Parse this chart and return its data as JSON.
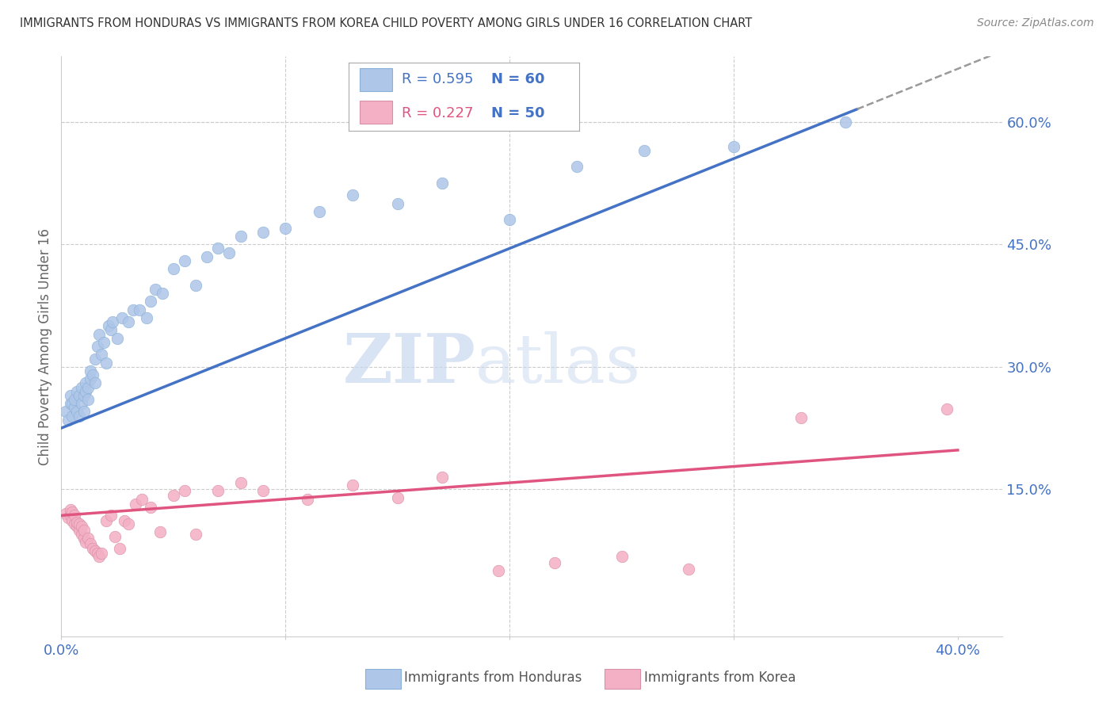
{
  "title": "IMMIGRANTS FROM HONDURAS VS IMMIGRANTS FROM KOREA CHILD POVERTY AMONG GIRLS UNDER 16 CORRELATION CHART",
  "source": "Source: ZipAtlas.com",
  "ylabel": "Child Poverty Among Girls Under 16",
  "xlim": [
    0.0,
    0.42
  ],
  "ylim": [
    -0.03,
    0.68
  ],
  "plot_xlim": [
    0.0,
    0.4
  ],
  "honduras_color": "#aec6e8",
  "korea_color": "#f4b0c4",
  "honduras_line_color": "#4472c4",
  "korea_line_color": "#e05580",
  "honduras_R": 0.595,
  "honduras_N": 60,
  "korea_R": 0.227,
  "korea_N": 50,
  "legend_label_honduras": "Immigrants from Honduras",
  "legend_label_korea": "Immigrants from Korea",
  "watermark_zip": "ZIP",
  "watermark_atlas": "atlas",
  "background_color": "#ffffff",
  "grid_color": "#cccccc",
  "title_color": "#333333",
  "axis_label_color": "#4472c4",
  "ytick_vals": [
    0.0,
    0.15,
    0.3,
    0.45,
    0.6
  ],
  "ytick_labels": [
    "",
    "15.0%",
    "30.0%",
    "45.0%",
    "60.0%"
  ],
  "xtick_vals": [
    0.0,
    0.1,
    0.2,
    0.3,
    0.4
  ],
  "xtick_labels": [
    "0.0%",
    "",
    "",
    "",
    "40.0%"
  ],
  "honduras_x": [
    0.002,
    0.003,
    0.004,
    0.004,
    0.005,
    0.005,
    0.006,
    0.006,
    0.007,
    0.007,
    0.008,
    0.008,
    0.009,
    0.009,
    0.01,
    0.01,
    0.011,
    0.011,
    0.012,
    0.012,
    0.013,
    0.013,
    0.014,
    0.015,
    0.015,
    0.016,
    0.017,
    0.018,
    0.019,
    0.02,
    0.021,
    0.022,
    0.023,
    0.025,
    0.027,
    0.03,
    0.032,
    0.035,
    0.038,
    0.04,
    0.042,
    0.045,
    0.05,
    0.055,
    0.06,
    0.065,
    0.07,
    0.075,
    0.08,
    0.09,
    0.1,
    0.115,
    0.13,
    0.15,
    0.17,
    0.2,
    0.23,
    0.26,
    0.3,
    0.35
  ],
  "honduras_y": [
    0.245,
    0.235,
    0.255,
    0.265,
    0.24,
    0.255,
    0.25,
    0.26,
    0.245,
    0.27,
    0.24,
    0.265,
    0.255,
    0.275,
    0.245,
    0.265,
    0.28,
    0.27,
    0.26,
    0.275,
    0.285,
    0.295,
    0.29,
    0.31,
    0.28,
    0.325,
    0.34,
    0.315,
    0.33,
    0.305,
    0.35,
    0.345,
    0.355,
    0.335,
    0.36,
    0.355,
    0.37,
    0.37,
    0.36,
    0.38,
    0.395,
    0.39,
    0.42,
    0.43,
    0.4,
    0.435,
    0.445,
    0.44,
    0.46,
    0.465,
    0.47,
    0.49,
    0.51,
    0.5,
    0.525,
    0.48,
    0.545,
    0.565,
    0.57,
    0.6
  ],
  "korea_x": [
    0.002,
    0.003,
    0.004,
    0.004,
    0.005,
    0.005,
    0.006,
    0.006,
    0.007,
    0.007,
    0.008,
    0.008,
    0.009,
    0.009,
    0.01,
    0.01,
    0.011,
    0.012,
    0.013,
    0.014,
    0.015,
    0.016,
    0.017,
    0.018,
    0.02,
    0.022,
    0.024,
    0.026,
    0.028,
    0.03,
    0.033,
    0.036,
    0.04,
    0.044,
    0.05,
    0.055,
    0.06,
    0.07,
    0.08,
    0.09,
    0.11,
    0.13,
    0.15,
    0.17,
    0.195,
    0.22,
    0.25,
    0.28,
    0.33,
    0.395
  ],
  "korea_y": [
    0.12,
    0.115,
    0.118,
    0.125,
    0.112,
    0.122,
    0.108,
    0.118,
    0.105,
    0.11,
    0.1,
    0.108,
    0.095,
    0.105,
    0.09,
    0.1,
    0.085,
    0.09,
    0.083,
    0.078,
    0.075,
    0.072,
    0.068,
    0.072,
    0.112,
    0.118,
    0.092,
    0.078,
    0.112,
    0.108,
    0.132,
    0.138,
    0.128,
    0.098,
    0.143,
    0.148,
    0.095,
    0.148,
    0.158,
    0.148,
    0.138,
    0.155,
    0.14,
    0.165,
    0.05,
    0.06,
    0.068,
    0.052,
    0.238,
    0.248
  ]
}
